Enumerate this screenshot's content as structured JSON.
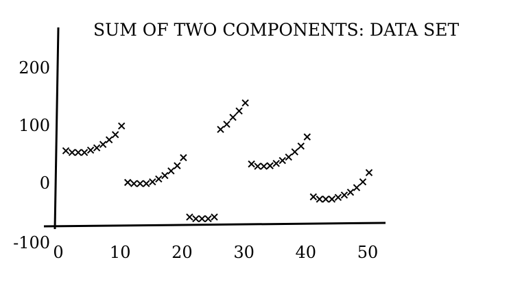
{
  "chart_data": {
    "type": "scatter",
    "title": "SUM OF TWO COMPONENTS: DATA SET",
    "xlabel": "",
    "ylabel": "",
    "xlim": [
      0,
      50
    ],
    "ylim": [
      -100,
      250
    ],
    "x_ticks": [
      0,
      10,
      20,
      30,
      40,
      50
    ],
    "y_ticks": [
      -100,
      0,
      100,
      200
    ],
    "x_tick_labels": [
      "0",
      "10",
      "20",
      "30",
      "40",
      "50"
    ],
    "y_tick_labels": [
      "-100",
      "0",
      "100",
      "200"
    ],
    "grid": false,
    "legend": "none",
    "marker": "x",
    "series": [
      {
        "x": [
          1,
          2,
          3,
          4,
          5,
          6,
          7,
          8,
          9,
          10,
          11,
          12,
          13,
          14,
          15,
          16,
          17,
          18,
          19,
          20,
          21,
          22,
          23,
          24,
          25,
          26,
          27,
          28,
          29,
          30,
          31,
          32,
          33,
          34,
          35,
          36,
          37,
          38,
          39,
          40,
          41,
          42,
          43,
          44,
          45,
          46,
          47,
          48,
          49,
          50
        ],
        "y": [
          55,
          52,
          52,
          52,
          56,
          60,
          66,
          74,
          83,
          98,
          0,
          -2,
          -2,
          -2,
          1,
          6,
          12,
          20,
          29,
          43,
          -60,
          -63,
          -63,
          -63,
          -60,
          92,
          101,
          113,
          124,
          138,
          32,
          28,
          28,
          29,
          33,
          38,
          44,
          53,
          63,
          79,
          -25,
          -29,
          -29,
          -29,
          -26,
          -22,
          -17,
          -9,
          1,
          17
        ]
      }
    ]
  }
}
